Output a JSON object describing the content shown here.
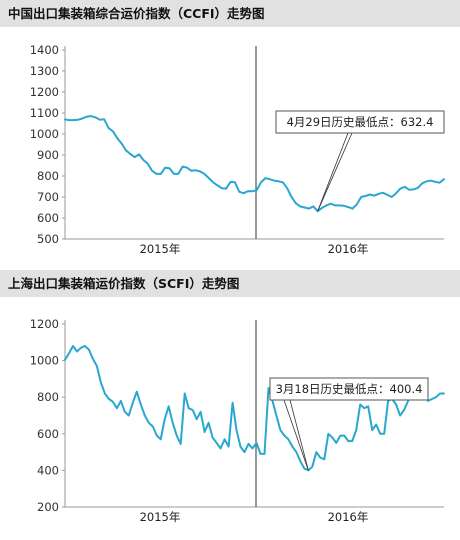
{
  "chart_data": [
    {
      "type": "line",
      "title": "中国出口集装箱综合运价指数（CCFI）走势图",
      "ylim": [
        500,
        1400
      ],
      "yticks": [
        1400,
        1300,
        1200,
        1100,
        1000,
        900,
        800,
        700,
        600,
        500
      ],
      "x_labels": [
        "2015年",
        "2016年"
      ],
      "annotation": "4月29日历史最低点：632.4",
      "grid": false,
      "series": [
        {
          "color": "#2aa7cf",
          "values": [
            1069,
            1066,
            1066,
            1068,
            1074,
            1083,
            1085,
            1079,
            1068,
            1070,
            1028,
            1013,
            980,
            955,
            922,
            905,
            890,
            903,
            876,
            858,
            825,
            810,
            810,
            840,
            836,
            810,
            810,
            845,
            840,
            825,
            827,
            822,
            810,
            790,
            770,
            755,
            742,
            740,
            772,
            770,
            725,
            718,
            728,
            727,
            733,
            770,
            790,
            785,
            778,
            775,
            770,
            742,
            700,
            670,
            655,
            650,
            645,
            655,
            632.4,
            648,
            660,
            668,
            660,
            660,
            658,
            652,
            645,
            665,
            700,
            705,
            712,
            706,
            715,
            720,
            710,
            700,
            718,
            740,
            748,
            735,
            736,
            744,
            765,
            775,
            778,
            772,
            768,
            785
          ]
        }
      ]
    },
    {
      "type": "line",
      "title": "上海出口集装箱运价指数（SCFI）走势图",
      "ylim": [
        200,
        1200
      ],
      "yticks": [
        1200,
        1000,
        800,
        600,
        400,
        200
      ],
      "x_labels": [
        "2015年",
        "2016年"
      ],
      "annotation": "3月18日历史最低点：400.4",
      "grid": false,
      "series": [
        {
          "color": "#2aa7cf",
          "values": [
            1005,
            1040,
            1080,
            1050,
            1070,
            1080,
            1060,
            1010,
            970,
            880,
            820,
            790,
            775,
            740,
            780,
            720,
            700,
            770,
            830,
            760,
            700,
            660,
            640,
            590,
            570,
            680,
            750,
            660,
            590,
            545,
            820,
            740,
            730,
            680,
            720,
            610,
            660,
            580,
            550,
            520,
            570,
            530,
            770,
            620,
            530,
            500,
            545,
            520,
            550,
            490,
            490,
            850,
            780,
            700,
            620,
            590,
            570,
            530,
            500,
            450,
            410,
            400.4,
            420,
            500,
            470,
            460,
            600,
            580,
            550,
            590,
            590,
            560,
            560,
            620,
            760,
            740,
            750,
            620,
            650,
            600,
            600,
            780,
            790,
            760,
            700,
            730,
            780,
            870,
            850,
            800,
            820,
            780,
            790,
            800,
            820,
            820
          ]
        }
      ]
    }
  ]
}
